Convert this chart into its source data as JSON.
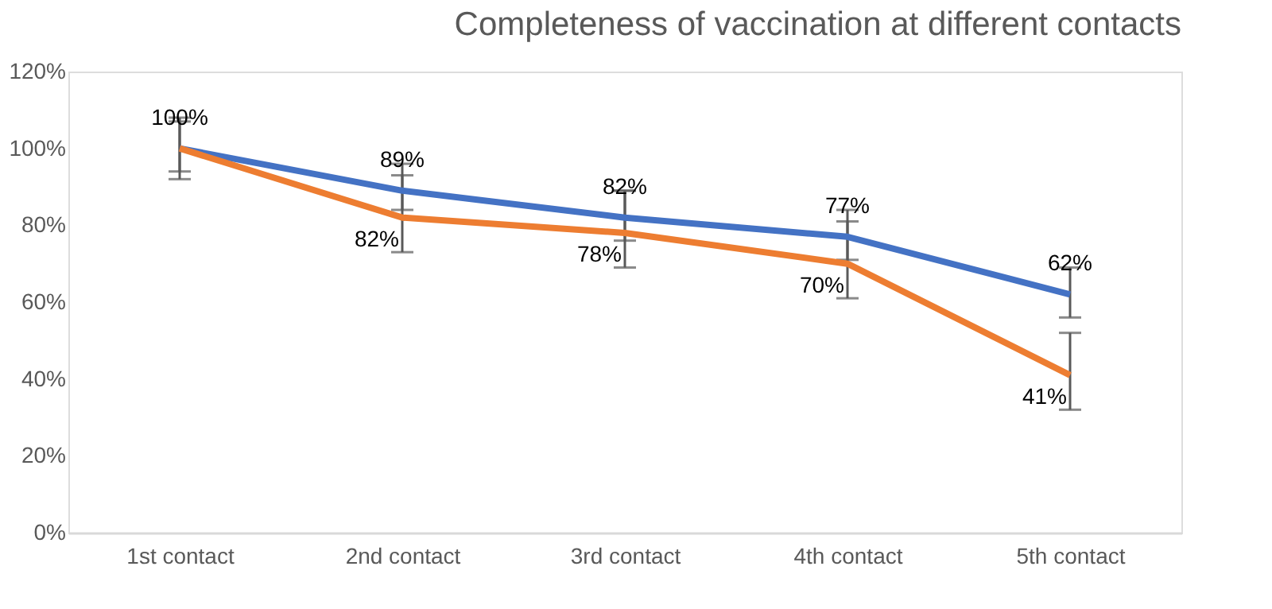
{
  "chart_data": {
    "type": "line",
    "title": "Completeness of vaccination at different contacts",
    "categories": [
      "1st contact",
      "2nd contact",
      "3rd contact",
      "4th contact",
      "5th contact"
    ],
    "series": [
      {
        "color": "#4472c4",
        "values": [
          100,
          89,
          82,
          77,
          62
        ],
        "errors": [
          [
            94,
            107
          ],
          [
            84,
            96
          ],
          [
            76,
            89
          ],
          [
            71,
            84
          ],
          [
            56,
            69
          ]
        ],
        "value_labels": [
          "100%",
          "89%",
          "82%",
          "77%",
          "62%"
        ]
      },
      {
        "color": "#ed7d31",
        "values": [
          100,
          82,
          78,
          70,
          41
        ],
        "errors": [
          [
            92,
            108
          ],
          [
            73,
            93
          ],
          [
            69,
            89
          ],
          [
            61,
            81
          ],
          [
            32,
            52
          ]
        ],
        "value_labels": [
          null,
          "82%",
          "78%",
          "70%",
          "41%"
        ]
      }
    ],
    "ylim": [
      0,
      120
    ],
    "yticks": [
      {
        "value": 0,
        "label": "0%"
      },
      {
        "value": 20,
        "label": "20%"
      },
      {
        "value": 40,
        "label": "40%"
      },
      {
        "value": 60,
        "label": "60%"
      },
      {
        "value": 80,
        "label": "80%"
      },
      {
        "value": 100,
        "label": "100%"
      },
      {
        "value": 120,
        "label": "120%"
      }
    ],
    "grid": false,
    "legend": false,
    "marker": "none",
    "line_style": "solid"
  }
}
